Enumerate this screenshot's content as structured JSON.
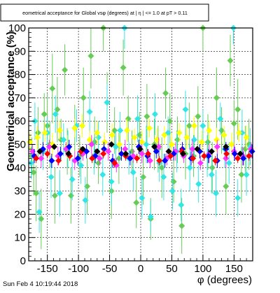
{
  "chart_data": {
    "type": "scatter",
    "title": "eometrical acceptance for Global vsφ (degrees) at | η | <= 1.0 at pT > 0.11",
    "xlabel": "φ (degrees)",
    "ylabel": "Geometrical acceptance (%)",
    "xlim": [
      -180,
      180
    ],
    "ylim": [
      0,
      100
    ],
    "x_ticks": [
      "-150",
      "-100",
      "-50",
      "0",
      "50",
      "100",
      "150"
    ],
    "y_ticks": [
      "0",
      "10",
      "20",
      "30",
      "40",
      "50",
      "60",
      "70",
      "80",
      "90",
      "100"
    ],
    "grid": true,
    "marker": "diamond",
    "colors": {
      "green": "#66cc55",
      "cyan": "#33e6e6",
      "yellow": "#ffff00",
      "magenta": "#ff33ff",
      "blue": "#0000ff",
      "red": "#ff0000",
      "black": "#000000"
    },
    "series": [
      {
        "color": "green",
        "x": [
          -175,
          -172,
          -168,
          -165,
          -160,
          -155,
          -150,
          -146,
          -142,
          -138,
          -134,
          -128,
          -122,
          -118,
          -112,
          -106,
          -98,
          -92,
          -86,
          -80,
          -74,
          -68,
          -60,
          -54,
          -47,
          -42,
          -35,
          -28,
          -20,
          -14,
          -7,
          -2,
          4,
          10,
          16,
          22,
          28,
          34,
          40,
          47,
          53,
          59,
          66,
          72,
          78,
          85,
          92,
          100,
          108,
          115,
          122,
          130,
          137,
          144,
          150,
          156,
          162,
          168,
          174
        ],
        "y": [
          45,
          38,
          29,
          55,
          18,
          63,
          58,
          50,
          74,
          28,
          65,
          52,
          82,
          47,
          28,
          57,
          45,
          70,
          32,
          88,
          51,
          42,
          100,
          68,
          30,
          56,
          44,
          83,
          61,
          47,
          25,
          54,
          36,
          62,
          18,
          50,
          48,
          40,
          72,
          60,
          34,
          52,
          15,
          46,
          58,
          45,
          62,
          100,
          51,
          40,
          70,
          56,
          32,
          86,
          59,
          65,
          37,
          48,
          50
        ],
        "err": [
          8,
          10,
          12,
          11,
          13,
          9,
          14,
          10,
          15,
          12,
          14,
          9,
          11,
          10,
          12,
          10,
          9,
          13,
          12,
          14,
          11,
          9,
          10,
          13,
          12,
          10,
          11,
          12,
          10,
          9,
          11,
          10,
          12,
          14,
          9,
          11,
          10,
          13,
          11,
          12,
          9,
          10,
          12,
          11,
          10,
          9,
          13,
          10,
          12,
          11,
          13,
          10,
          12,
          11,
          10,
          13,
          12,
          10,
          11
        ]
      },
      {
        "color": "cyan",
        "x": [
          -176,
          -170,
          -163,
          -157,
          -150,
          -144,
          -137,
          -130,
          -124,
          -117,
          -110,
          -103,
          -96,
          -89,
          -82,
          -75,
          -68,
          -61,
          -54,
          -47,
          -40,
          -33,
          -26,
          -19,
          -12,
          -5,
          2,
          9,
          16,
          23,
          30,
          37,
          44,
          51,
          58,
          65,
          72,
          79,
          86,
          93,
          100,
          107,
          114,
          121,
          128,
          135,
          142,
          149,
          156,
          163,
          170,
          176
        ],
        "y": [
          42,
          60,
          21,
          47,
          55,
          36,
          63,
          29,
          52,
          48,
          35,
          58,
          41,
          26,
          64,
          45,
          53,
          37,
          68,
          34,
          49,
          56,
          100,
          44,
          38,
          61,
          27,
          50,
          19,
          63,
          42,
          36,
          55,
          30,
          47,
          24,
          65,
          40,
          52,
          33,
          58,
          45,
          37,
          29,
          61,
          48,
          42,
          100,
          27,
          55,
          37,
          49
        ],
        "err": [
          7,
          8,
          9,
          8,
          7,
          9,
          8,
          10,
          7,
          8,
          9,
          7,
          8,
          10,
          9,
          8,
          7,
          9,
          8,
          10,
          7,
          8,
          9,
          7,
          8,
          10,
          9,
          8,
          7,
          9,
          8,
          10,
          7,
          8,
          9,
          7,
          8,
          10,
          9,
          8,
          7,
          9,
          8,
          10,
          7,
          8,
          9,
          7,
          8,
          10,
          9,
          8
        ]
      },
      {
        "color": "yellow",
        "x": [
          -178,
          -166,
          -154,
          -142,
          -130,
          -118,
          -106,
          -94,
          -82,
          -70,
          -58,
          -46,
          -34,
          -22,
          -10,
          2,
          14,
          26,
          38,
          50,
          62,
          74,
          86,
          98,
          110,
          122,
          134,
          146,
          158,
          170
        ],
        "y": [
          51,
          53,
          55,
          50,
          56,
          49,
          57,
          58,
          52,
          55,
          51,
          54,
          50,
          56,
          53,
          51,
          57,
          52,
          54,
          50,
          55,
          53,
          58,
          51,
          56,
          52,
          54,
          50,
          55,
          53
        ],
        "err": [
          4,
          5,
          4,
          5,
          4,
          5,
          4,
          5,
          4,
          5,
          4,
          5,
          4,
          5,
          4,
          5,
          4,
          5,
          4,
          5,
          4,
          5,
          4,
          5,
          4,
          5,
          4,
          5,
          4,
          5
        ]
      },
      {
        "color": "magenta",
        "x": [
          -174,
          -160,
          -147,
          -133,
          -120,
          -106,
          -93,
          -79,
          -66,
          -52,
          -39,
          -25,
          -12,
          2,
          15,
          29,
          42,
          56,
          69,
          83,
          96,
          110,
          123,
          137,
          150,
          164,
          177
        ],
        "y": [
          47,
          44,
          49,
          45,
          48,
          43,
          46,
          50,
          44,
          47,
          41,
          48,
          45,
          46,
          43,
          49,
          44,
          47,
          45,
          48,
          42,
          46,
          49,
          44,
          47,
          45,
          48
        ],
        "err": [
          3,
          4,
          3,
          4,
          3,
          4,
          3,
          4,
          3,
          4,
          3,
          4,
          3,
          4,
          3,
          4,
          3,
          4,
          3,
          4,
          3,
          4,
          3,
          4,
          3,
          4,
          3
        ]
      },
      {
        "color": "blue",
        "x": [
          -171,
          -157,
          -143,
          -129,
          -115,
          -101,
          -87,
          -73,
          -59,
          -45,
          -31,
          -17,
          -3,
          11,
          25,
          39,
          53,
          67,
          81,
          95,
          109,
          123,
          137,
          151,
          165,
          179
        ],
        "y": [
          45,
          48,
          43,
          46,
          49,
          44,
          47,
          45,
          48,
          43,
          46,
          44,
          49,
          45,
          47,
          43,
          46,
          48,
          44,
          47,
          45,
          43,
          48,
          46,
          44,
          47
        ],
        "err": [
          3,
          3,
          3,
          3,
          3,
          3,
          3,
          3,
          3,
          3,
          3,
          3,
          3,
          3,
          3,
          3,
          3,
          3,
          3,
          3,
          3,
          3,
          3,
          3,
          3,
          3
        ]
      },
      {
        "color": "red",
        "x": [
          -168,
          -150,
          -132,
          -114,
          -96,
          -78,
          -60,
          -42,
          -24,
          -6,
          12,
          30,
          48,
          66,
          84,
          102,
          120,
          138,
          156,
          174
        ],
        "y": [
          44,
          46,
          43,
          45,
          47,
          44,
          46,
          42,
          45,
          44,
          46,
          43,
          45,
          47,
          44,
          45,
          43,
          46,
          44,
          45
        ],
        "err": [
          2,
          2,
          2,
          2,
          2,
          2,
          2,
          2,
          2,
          2,
          2,
          2,
          2,
          2,
          2,
          2,
          2,
          2,
          2,
          2
        ]
      },
      {
        "color": "black",
        "x": [
          -162,
          -139,
          -116,
          -93,
          -70,
          -47,
          -24,
          -1,
          22,
          45,
          68,
          91,
          114,
          137,
          160
        ],
        "y": [
          47,
          49,
          46,
          48,
          47,
          50,
          46,
          48,
          49,
          47,
          46,
          48,
          47,
          49,
          46
        ],
        "err": [
          1,
          1,
          1,
          1,
          1,
          1,
          1,
          1,
          1,
          1,
          1,
          1,
          1,
          1,
          1
        ]
      }
    ]
  },
  "footer": {
    "timestamp": "Sun Feb  4 10:19:44 2018"
  }
}
